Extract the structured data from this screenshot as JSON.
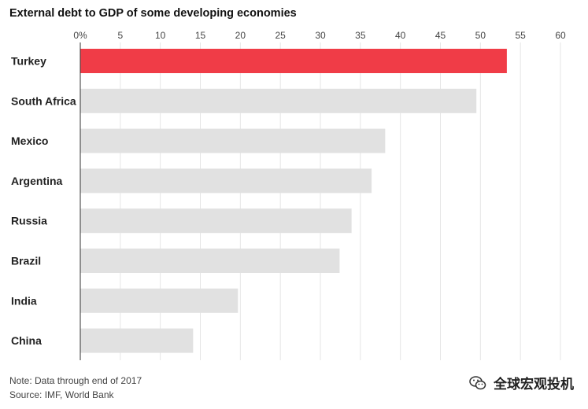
{
  "chart_data": {
    "type": "bar",
    "orientation": "horizontal",
    "title": "External debt to GDP of some developing economies",
    "categories": [
      "Turkey",
      "South Africa",
      "Mexico",
      "Argentina",
      "Russia",
      "Brazil",
      "India",
      "China"
    ],
    "values": [
      53.3,
      49.5,
      38.1,
      36.4,
      33.9,
      32.4,
      19.7,
      14.1
    ],
    "highlight_index": 0,
    "xlim": [
      0,
      60
    ],
    "xticks": [
      0,
      5,
      10,
      15,
      20,
      25,
      30,
      35,
      40,
      45,
      50,
      55,
      60
    ],
    "xtick_labels": [
      "0%",
      "5",
      "10",
      "15",
      "20",
      "25",
      "30",
      "35",
      "40",
      "45",
      "50",
      "55",
      "60"
    ],
    "xlabel": "",
    "ylabel": "",
    "grid": true,
    "colors": {
      "highlight": "#f03c47",
      "bar": "#e1e1e1",
      "grid": "#e6e6e6",
      "axis": "#333333"
    }
  },
  "notes": {
    "note": "Note: Data through end of 2017",
    "source": "Source: IMF, World Bank"
  },
  "watermark": {
    "text": "全球宏观投机",
    "icon": "wechat-icon"
  }
}
